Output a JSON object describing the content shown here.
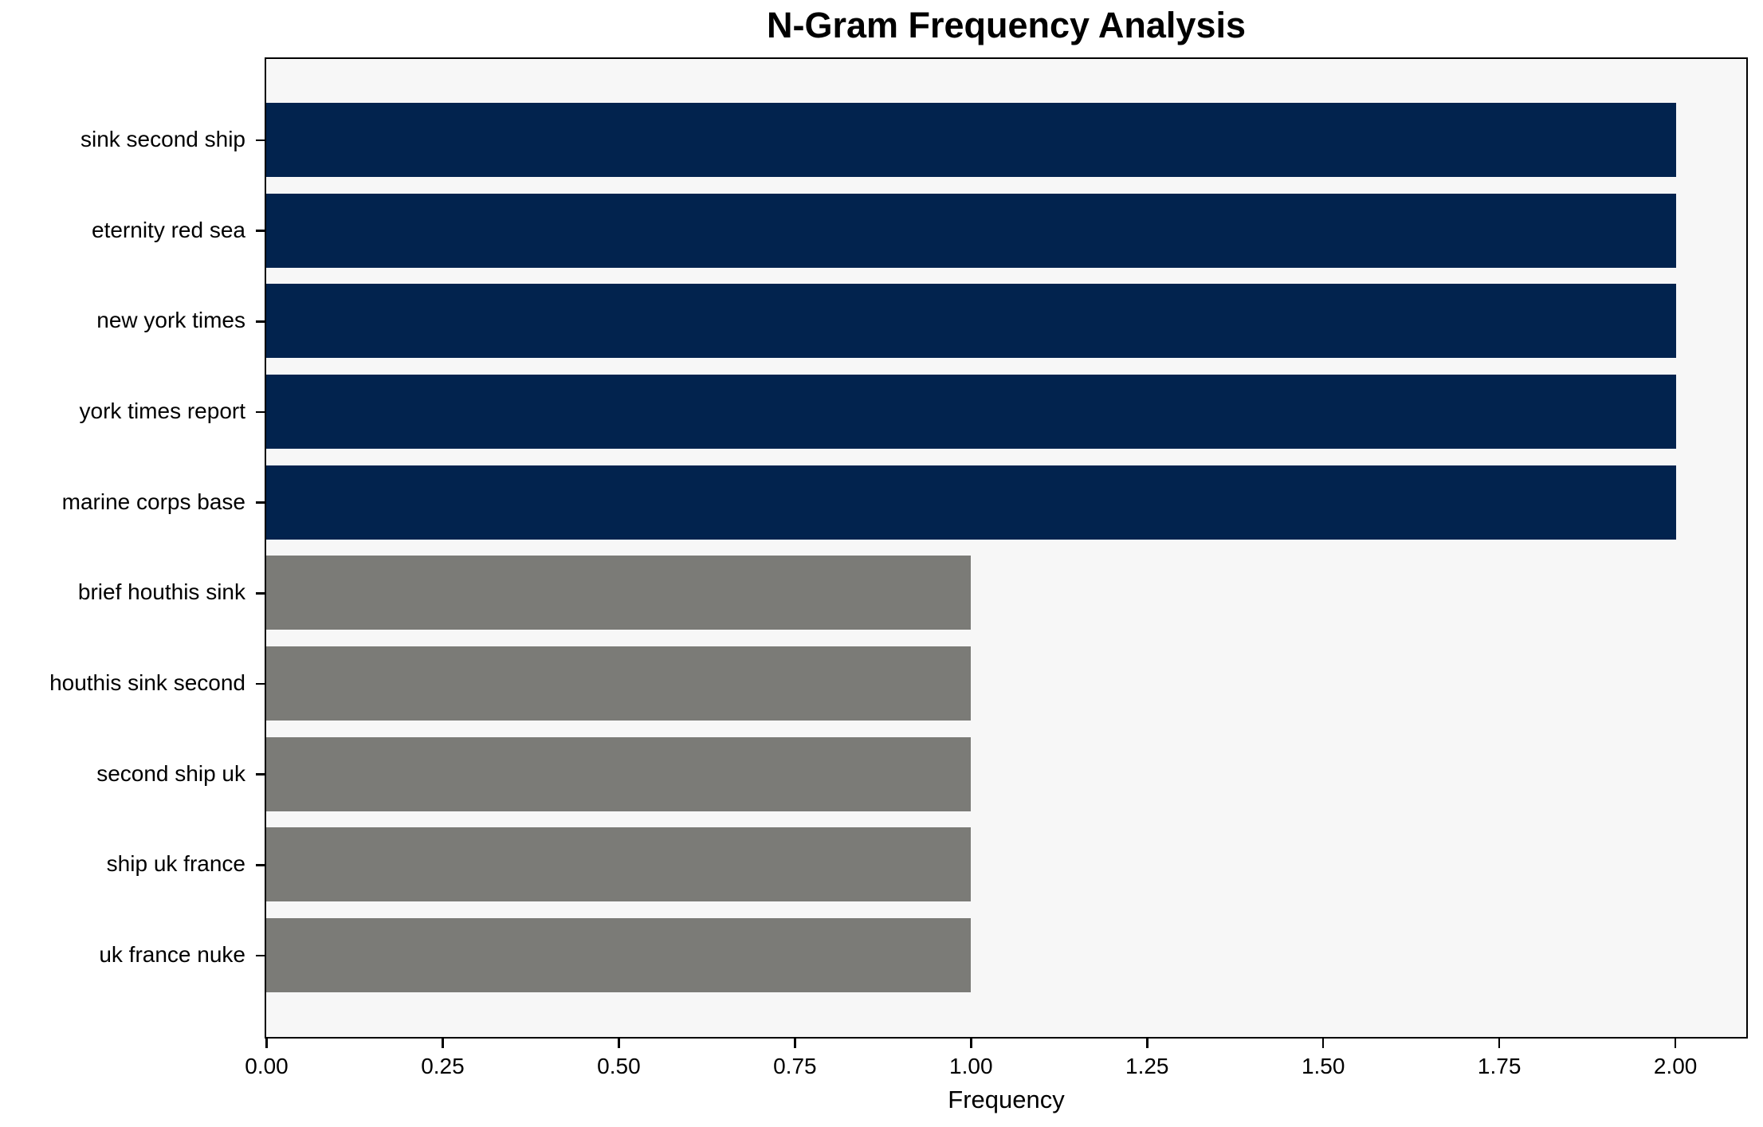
{
  "figure": {
    "title": "N-Gram Frequency Analysis",
    "xlabel": "Frequency"
  },
  "chart_data": {
    "type": "bar",
    "orientation": "horizontal",
    "title": "N-Gram Frequency Analysis",
    "xlabel": "Frequency",
    "ylabel": "",
    "categories": [
      "sink second ship",
      "eternity red sea",
      "new york times",
      "york times report",
      "marine corps base",
      "brief houthis sink",
      "houthis sink second",
      "second ship uk",
      "ship uk france",
      "uk france nuke"
    ],
    "values": [
      2,
      2,
      2,
      2,
      2,
      1,
      1,
      1,
      1,
      1
    ],
    "bar_colors": [
      "#02234e",
      "#02234e",
      "#02234e",
      "#02234e",
      "#02234e",
      "#7b7b77",
      "#7b7b77",
      "#7b7b77",
      "#7b7b77",
      "#7b7b77"
    ],
    "xlim": [
      0,
      2.1
    ],
    "xticks": [
      {
        "value": 0.0,
        "label": "0.00"
      },
      {
        "value": 0.25,
        "label": "0.25"
      },
      {
        "value": 0.5,
        "label": "0.50"
      },
      {
        "value": 0.75,
        "label": "0.75"
      },
      {
        "value": 1.0,
        "label": "1.00"
      },
      {
        "value": 1.25,
        "label": "1.25"
      },
      {
        "value": 1.5,
        "label": "1.50"
      },
      {
        "value": 1.75,
        "label": "1.75"
      },
      {
        "value": 2.0,
        "label": "2.00"
      }
    ],
    "grid": false,
    "legend_position": "none",
    "colors": {
      "high_frequency_bar": "#02234e",
      "low_frequency_bar": "#7b7b77",
      "plot_background": "#f7f7f7",
      "figure_background": "#ffffff",
      "spine": "#000000",
      "text": "#000000"
    }
  }
}
